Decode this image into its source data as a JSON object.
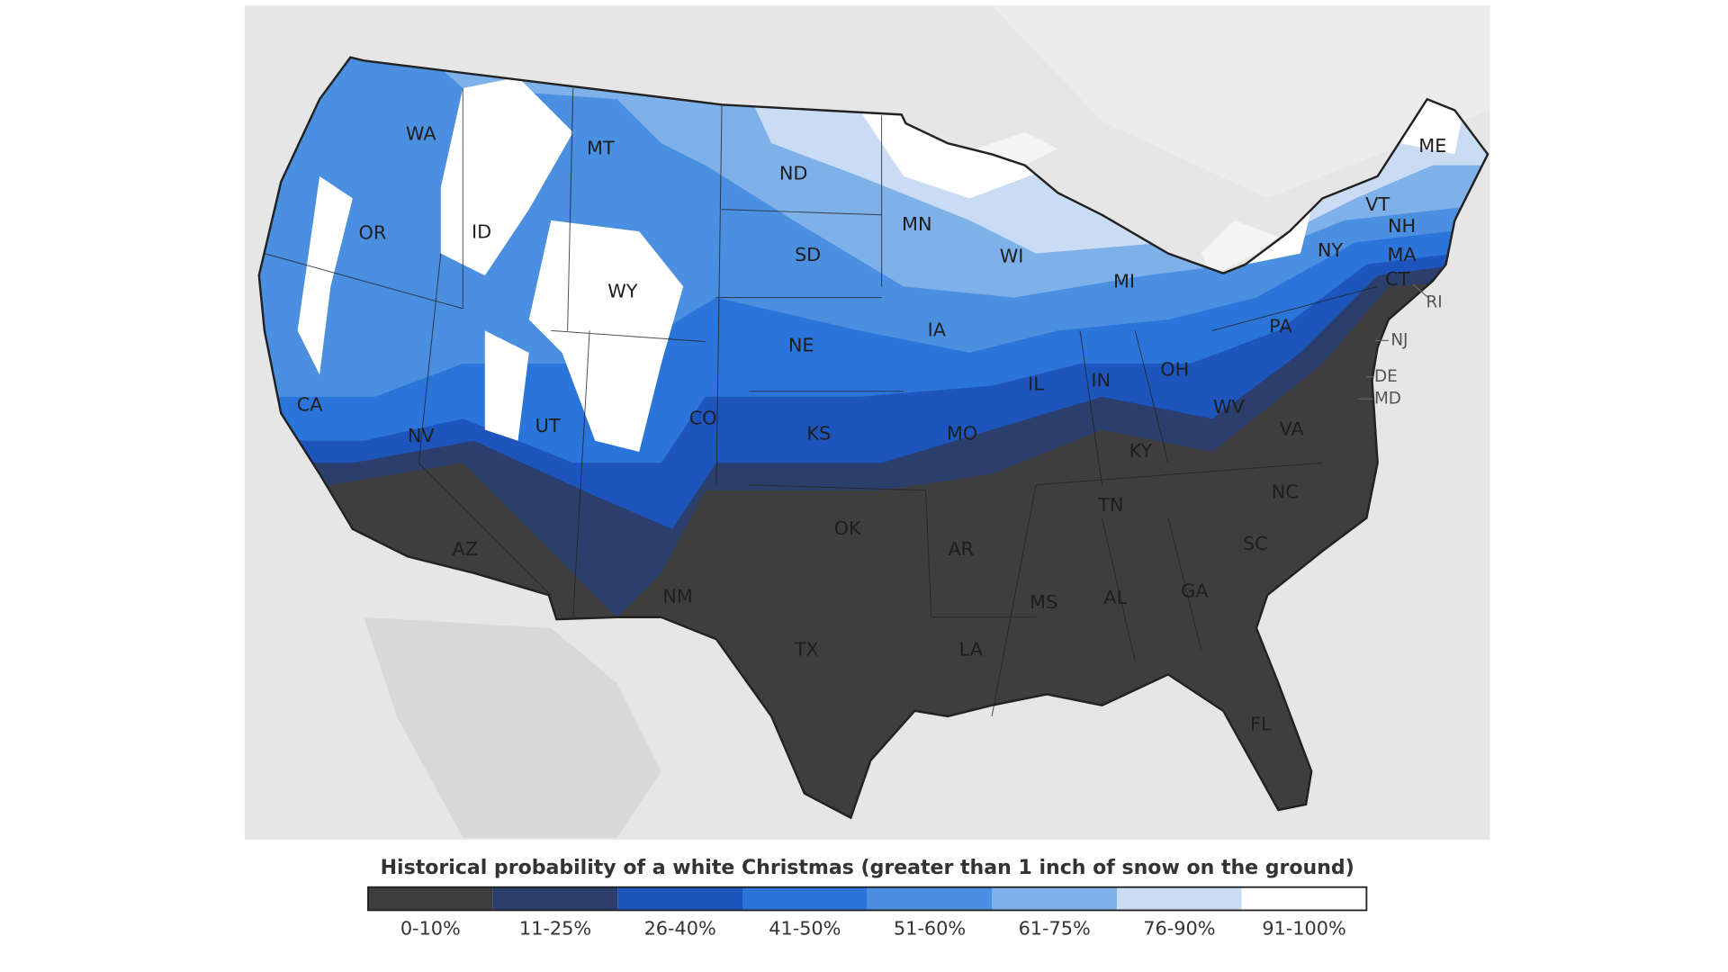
{
  "map": {
    "state_labels": [
      "WA",
      "MT",
      "ND",
      "ME",
      "OR",
      "ID",
      "MN",
      "WI",
      "NY",
      "VT",
      "NH",
      "MA",
      "CT",
      "RI",
      "SD",
      "WY",
      "MI",
      "IA",
      "NE",
      "PA",
      "NJ",
      "DE",
      "MD",
      "CA",
      "NV",
      "UT",
      "CO",
      "KS",
      "MO",
      "IL",
      "IN",
      "OH",
      "WV",
      "VA",
      "KY",
      "NC",
      "TN",
      "OK",
      "AR",
      "SC",
      "AZ",
      "NM",
      "MS",
      "AL",
      "GA",
      "TX",
      "LA",
      "FL"
    ]
  },
  "legend": {
    "title": "Historical probability of a white Christmas (greater than 1 inch of snow on the ground)",
    "items": [
      {
        "label": "0-10%",
        "color": "#3e3e3e"
      },
      {
        "label": "11-25%",
        "color": "#2c3f6c"
      },
      {
        "label": "26-40%",
        "color": "#1d55bd"
      },
      {
        "label": "41-50%",
        "color": "#2b74d9"
      },
      {
        "label": "51-60%",
        "color": "#4a8fe0"
      },
      {
        "label": "61-75%",
        "color": "#7eb0e9"
      },
      {
        "label": "76-90%",
        "color": "#c9dcf3"
      },
      {
        "label": "91-100%",
        "color": "#ffffff"
      }
    ]
  }
}
